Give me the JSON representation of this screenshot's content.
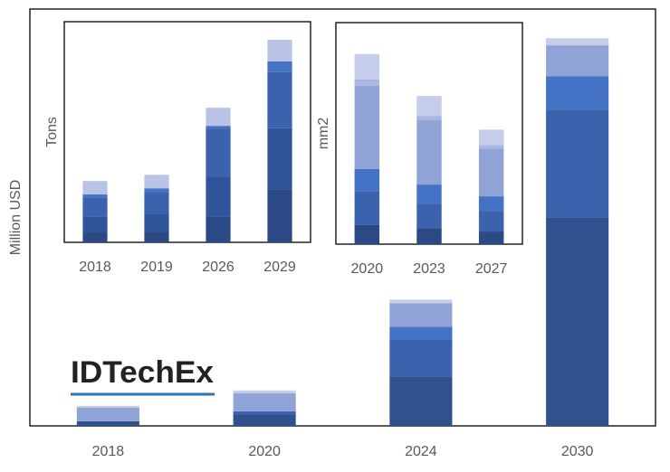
{
  "chart_data": [
    {
      "type": "bar",
      "stacked": true,
      "ylabel": "Million USD",
      "annotation": "IDTechEx",
      "categories": [
        "2018",
        "2020",
        "2024",
        "2030"
      ],
      "ylim": [
        0,
        100
      ],
      "series": [
        {
          "color": "#2f528f",
          "values": [
            1.1,
            2.8,
            11.9,
            49.9
          ]
        },
        {
          "color": "#3a62ad",
          "values": [
            0,
            0.7,
            8.9,
            26.0
          ]
        },
        {
          "color": "#4472c4",
          "values": [
            0,
            0,
            3.0,
            8.0
          ]
        },
        {
          "color": "#8fa3d6",
          "values": [
            3.3,
            4.3,
            5.6,
            7.4
          ]
        },
        {
          "color": "#c5cdea",
          "values": [
            0.4,
            0.7,
            0.9,
            1.7
          ]
        }
      ]
    },
    {
      "type": "bar",
      "stacked": true,
      "ylabel": "Tons",
      "categories": [
        "2018",
        "2019",
        "2026",
        "2029"
      ],
      "ylim": [
        0,
        100
      ],
      "series": [
        {
          "color": "#2b4a85",
          "values": [
            4.5,
            4.9,
            11.5,
            23.8
          ]
        },
        {
          "color": "#30549a",
          "values": [
            7.0,
            7.8,
            18.0,
            27.9
          ]
        },
        {
          "color": "#3a62ad",
          "values": [
            8.6,
            10.2,
            22.1,
            25.4
          ]
        },
        {
          "color": "#4472c4",
          "values": [
            1.6,
            1.6,
            1.2,
            4.9
          ]
        },
        {
          "color": "#b8c3e6",
          "values": [
            6.1,
            6.1,
            8.2,
            9.8
          ]
        }
      ]
    },
    {
      "type": "bar",
      "stacked": true,
      "ylabel": "mm2",
      "categories": [
        "2020",
        "2023",
        "2027"
      ],
      "ylim": [
        0,
        100
      ],
      "series": [
        {
          "color": "#2b4a85",
          "values": [
            8.6,
            7.3,
            5.7
          ]
        },
        {
          "color": "#3a62ad",
          "values": [
            15.1,
            11.0,
            9.0
          ]
        },
        {
          "color": "#4472c4",
          "values": [
            10.2,
            8.6,
            6.9
          ]
        },
        {
          "color": "#8fa3d6",
          "values": [
            37.6,
            29.0,
            21.6
          ]
        },
        {
          "color": "#a9b7e0",
          "values": [
            2.9,
            2.0,
            1.6
          ]
        },
        {
          "color": "#c5cdea",
          "values": [
            11.4,
            9.0,
            6.9
          ]
        }
      ]
    }
  ]
}
